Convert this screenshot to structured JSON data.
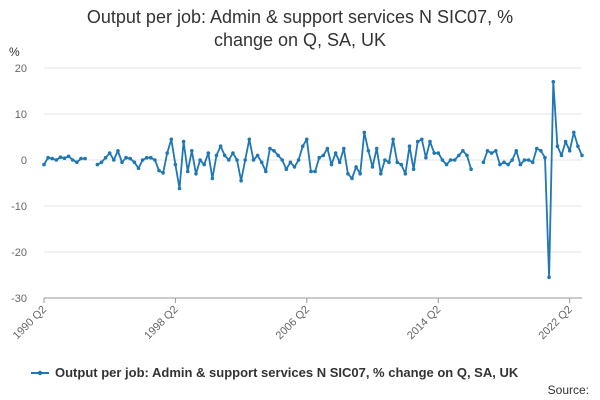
{
  "chart_data": {
    "type": "line",
    "title": "Output per job: Admin & support services N SIC07, % change on Q, SA, UK",
    "ylabel": "%",
    "ylim": [
      -30,
      20
    ],
    "yticks": [
      -30,
      -20,
      -10,
      0,
      10,
      20
    ],
    "x_ticks": [
      "1990 Q2",
      "1998 Q2",
      "2006 Q2",
      "2014 Q2",
      "2022 Q2"
    ],
    "grid": true,
    "legend_position": "bottom",
    "source_label": "Source:",
    "series": [
      {
        "name": "Output per job: Admin & support services N SIC07, % change on Q, SA, UK",
        "color": "#1f77b4",
        "start": "1990 Q2",
        "values": [
          -1.0,
          0.5,
          0.3,
          0.0,
          0.6,
          0.4,
          0.8,
          0.0,
          -0.5,
          0.3,
          0.3,
          null,
          null,
          -1.0,
          -0.5,
          0.5,
          1.5,
          0.0,
          2.0,
          -0.5,
          0.5,
          0.3,
          -0.5,
          -1.8,
          0.0,
          0.5,
          0.5,
          0.0,
          -2.3,
          -2.8,
          1.5,
          4.5,
          -1.0,
          -6.2,
          4.0,
          -2.5,
          2.0,
          -3.0,
          0.0,
          -1.0,
          1.5,
          -4.0,
          1.0,
          3.0,
          1.0,
          0.0,
          1.5,
          0.0,
          -4.5,
          0.0,
          4.5,
          0.0,
          1.0,
          -0.5,
          -2.5,
          2.5,
          2.0,
          1.0,
          0.0,
          -2.0,
          -0.5,
          -1.5,
          0.0,
          3.0,
          4.5,
          -2.5,
          -2.5,
          0.5,
          1.0,
          2.5,
          -1.0,
          1.5,
          -0.5,
          2.5,
          -3.0,
          -4.0,
          -1.5,
          -3.0,
          6.0,
          2.0,
          -1.5,
          2.5,
          -3.0,
          0.0,
          -0.5,
          4.5,
          -0.5,
          -1.0,
          -3.0,
          3.0,
          -2.0,
          4.0,
          4.5,
          0.5,
          4.0,
          1.5,
          1.5,
          0.0,
          -1.0,
          0.0,
          0.0,
          1.0,
          2.0,
          1.0,
          -2.0,
          null,
          null,
          -0.5,
          2.0,
          1.5,
          2.0,
          -1.0,
          -0.5,
          -1.0,
          0.0,
          2.0,
          -1.0,
          0.0,
          0.0,
          -0.5,
          2.5,
          2.0,
          0.5,
          -25.5,
          17.0,
          3.0,
          1.0,
          4.0,
          2.0,
          6.0,
          3.0,
          1.0
        ]
      }
    ]
  }
}
